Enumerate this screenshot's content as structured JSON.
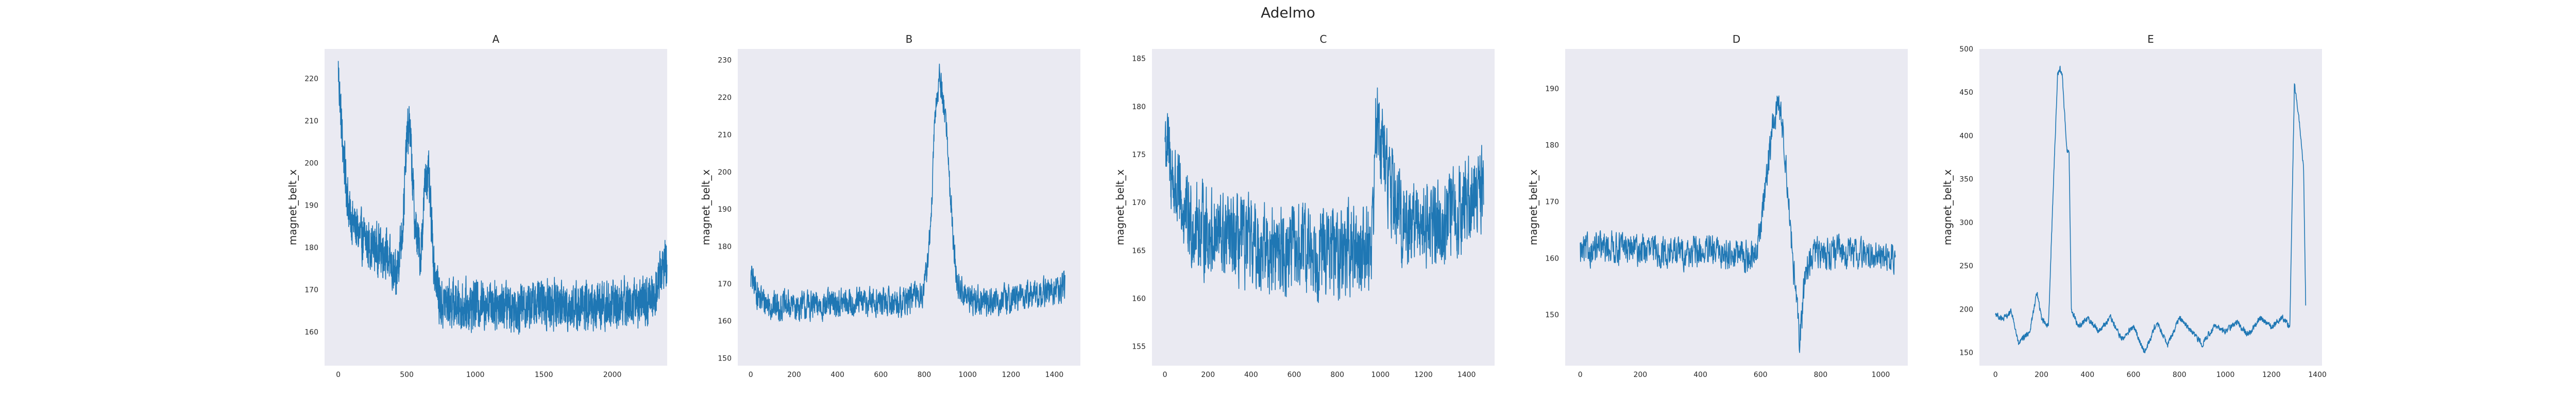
{
  "figure": {
    "title": "Adelmo"
  },
  "chart_data": [
    {
      "type": "line",
      "title": "A",
      "xlabel": "",
      "ylabel": "magnet_belt_x",
      "xlim": [
        -100,
        2400
      ],
      "ylim": [
        152,
        227
      ],
      "grid": false,
      "color": "#1f77b4",
      "xticks": [
        0,
        500,
        1000,
        1500,
        2000
      ],
      "yticks": [
        160,
        170,
        180,
        190,
        200,
        210,
        220
      ],
      "series": [
        {
          "n": 2400,
          "noise": 5,
          "x": [
            0,
            30,
            80,
            150,
            250,
            350,
            420,
            470,
            500,
            520,
            560,
            600,
            640,
            660,
            700,
            750,
            800,
            900,
            1100,
            1300,
            1500,
            1700,
            1900,
            2100,
            2250,
            2320,
            2370
          ],
          "y": [
            222,
            205,
            188,
            183,
            180,
            179,
            172,
            185,
            205,
            210,
            185,
            178,
            198,
            196,
            175,
            166,
            167,
            166,
            167,
            166,
            167,
            166,
            166,
            167,
            167,
            170,
            176
          ]
        }
      ]
    },
    {
      "type": "line",
      "title": "B",
      "xlabel": "",
      "ylabel": "magnet_belt_x",
      "xlim": [
        -60,
        1520
      ],
      "ylim": [
        148,
        233
      ],
      "grid": false,
      "color": "#1f77b4",
      "xticks": [
        0,
        200,
        400,
        600,
        800,
        1000,
        1200,
        1400
      ],
      "yticks": [
        150,
        160,
        170,
        180,
        190,
        200,
        210,
        220,
        230
      ],
      "series": [
        {
          "n": 1450,
          "noise": 3.5,
          "x": [
            0,
            40,
            100,
            300,
            500,
            700,
            800,
            830,
            850,
            870,
            900,
            915,
            930,
            950,
            1000,
            1100,
            1200,
            1300,
            1400,
            1450
          ],
          "y": [
            172,
            166,
            164,
            164,
            165,
            165,
            168,
            185,
            215,
            226,
            214,
            200,
            185,
            170,
            166,
            165,
            166,
            167,
            168,
            169
          ]
        }
      ]
    },
    {
      "type": "line",
      "title": "C",
      "xlabel": "",
      "ylabel": "magnet_belt_x",
      "xlim": [
        -60,
        1530
      ],
      "ylim": [
        153,
        186
      ],
      "grid": false,
      "color": "#1f77b4",
      "xticks": [
        0,
        200,
        400,
        600,
        800,
        1000,
        1200,
        1400
      ],
      "yticks": [
        155,
        160,
        165,
        170,
        175,
        180,
        185
      ],
      "series": [
        {
          "n": 1480,
          "noise": 4,
          "x": [
            0,
            40,
            100,
            300,
            500,
            700,
            900,
            960,
            980,
            1000,
            1040,
            1100,
            1300,
            1400,
            1480
          ],
          "y": [
            177,
            172,
            168,
            166,
            165,
            165,
            165,
            166,
            178,
            177,
            172,
            168,
            168,
            170,
            172
          ]
        }
      ]
    },
    {
      "type": "line",
      "title": "D",
      "xlabel": "",
      "ylabel": "magnet_belt_x",
      "xlim": [
        -50,
        1090
      ],
      "ylim": [
        141,
        197
      ],
      "grid": false,
      "color": "#1f77b4",
      "xticks": [
        0,
        200,
        400,
        600,
        800,
        1000
      ],
      "yticks": [
        150,
        160,
        170,
        180,
        190
      ],
      "series": [
        {
          "n": 1050,
          "noise": 2.5,
          "x": [
            0,
            100,
            300,
            500,
            580,
            600,
            620,
            640,
            660,
            680,
            700,
            730,
            750,
            780,
            900,
            1050
          ],
          "y": [
            161,
            162,
            161,
            161,
            160,
            165,
            175,
            183,
            188,
            180,
            165,
            145,
            158,
            161,
            161,
            160
          ]
        }
      ]
    },
    {
      "type": "line",
      "title": "E",
      "xlabel": "",
      "ylabel": "magnet_belt_x",
      "xlim": [
        -70,
        1420
      ],
      "ylim": [
        135,
        500
      ],
      "grid": false,
      "color": "#1f77b4",
      "xticks": [
        0,
        200,
        400,
        600,
        800,
        1000,
        1200,
        1400
      ],
      "yticks": [
        150,
        200,
        250,
        300,
        350,
        400,
        450,
        500
      ],
      "series": [
        {
          "n": 1350,
          "noise": 3,
          "x": [
            0,
            30,
            70,
            100,
            150,
            180,
            200,
            230,
            250,
            270,
            280,
            290,
            310,
            320,
            330,
            360,
            400,
            450,
            500,
            550,
            600,
            650,
            700,
            750,
            800,
            850,
            900,
            950,
            1000,
            1050,
            1100,
            1150,
            1200,
            1250,
            1280,
            1300,
            1310,
            1320,
            1340,
            1350
          ],
          "y": [
            195,
            188,
            197,
            160,
            175,
            220,
            190,
            180,
            330,
            470,
            478,
            470,
            385,
            380,
            200,
            180,
            190,
            175,
            190,
            165,
            180,
            150,
            185,
            160,
            190,
            175,
            160,
            180,
            175,
            185,
            170,
            190,
            180,
            190,
            180,
            460,
            440,
            420,
            360,
            190
          ]
        }
      ]
    }
  ]
}
